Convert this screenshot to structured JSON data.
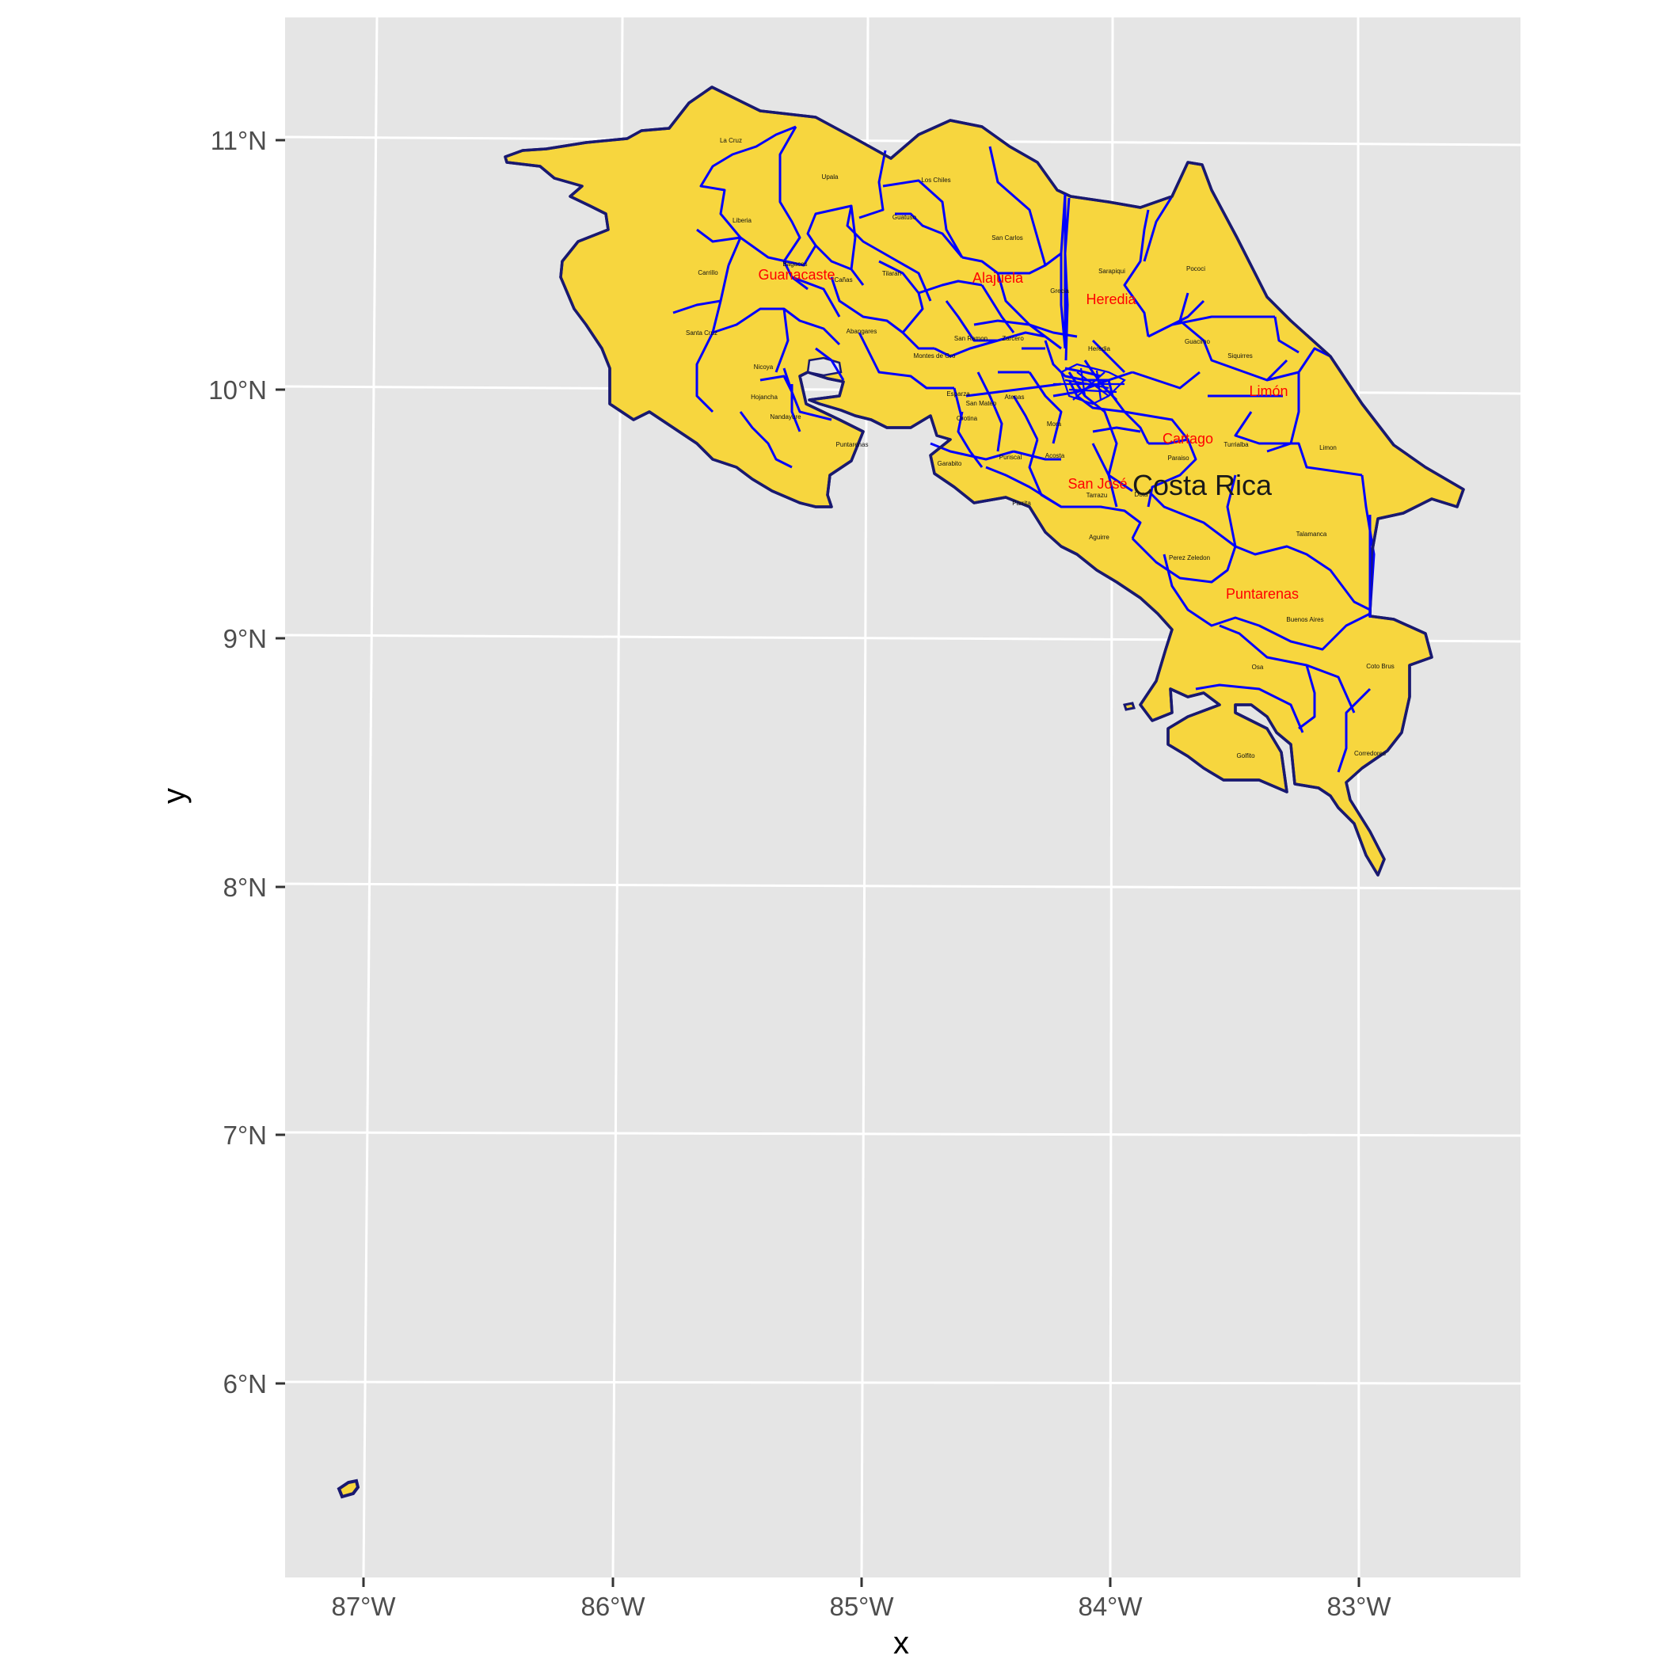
{
  "colors": {
    "panel_background": "#e5e5e5",
    "gridline": "#ffffff",
    "land_fill": "#f7d63e",
    "country_border": "#191970",
    "canton_border": "#0000ff",
    "province_label": "#ff0000",
    "canton_label": "#111111",
    "axis_text": "#4d4d4d"
  },
  "axes": {
    "x_title": "x",
    "y_title": "y",
    "x_ticks": [
      "87°W",
      "86°W",
      "85°W",
      "84°W",
      "83°W"
    ],
    "y_ticks": [
      "11°N",
      "10°N",
      "9°N",
      "8°N",
      "7°N",
      "6°N"
    ]
  },
  "map": {
    "country_label": "Costa Rica",
    "provinces": [
      "Guanacaste",
      "Alajuela",
      "Heredia",
      "Limón",
      "Cartago",
      "San José",
      "Puntarenas"
    ],
    "cantons": [
      "La Cruz",
      "Upala",
      "Los Chiles",
      "Guatuso",
      "Liberia",
      "San Carlos",
      "Sarapiqui",
      "Pococi",
      "Bagaces",
      "Cañas",
      "Tilaran",
      "Carrillo",
      "Grecia",
      "Abangares",
      "Santa Cruz",
      "Guacimo",
      "Siquirres",
      "San Ramon",
      "Zarcero",
      "Heredia",
      "Montes de Oro",
      "Nicoya",
      "Hojancha",
      "Nandayure",
      "Esparza",
      "San Mateo",
      "Atenas",
      "Orotina",
      "Mora",
      "Puntarenas",
      "Turrialba",
      "Limon",
      "Puriscal",
      "Acosta",
      "Garabito",
      "Paraiso",
      "Parrita",
      "Dota",
      "Tarrazu",
      "Aguirre",
      "Talamanca",
      "Perez Zeledon",
      "Buenos Aires",
      "Osa",
      "Coto Brus",
      "Golfito",
      "Corredores",
      "Cartago",
      "Desamparados",
      "Oreamuno",
      "Alvarado",
      "Coronado",
      "Leon Cortes",
      "Jimenez",
      "Valverde Vega",
      "Naranjo",
      "Palmares",
      "Santa Ana",
      "Escazu"
    ]
  }
}
